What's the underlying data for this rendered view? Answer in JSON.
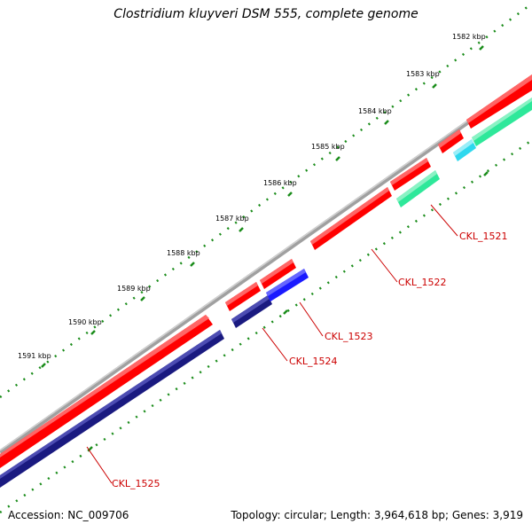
{
  "title": "Clostridium kluyveri DSM 555, complete genome",
  "accession_text": "Accession: NC_009706",
  "summary_text": "Topology: circular; Length: 3,964,618 bp; Genes: 3,919",
  "colors": {
    "backbone": "#8c8c8c",
    "forward_cds": "#ff0000",
    "reverse_cds": "#1a1a80",
    "blue_cds": "#1a1aff",
    "green_cds": "#2ee89a",
    "cyan_cds": "#2ed8ee",
    "tick": "#1a8c1a",
    "label_line": "#cc0000"
  },
  "scale": {
    "tick_labels": [
      "1582 kbp",
      "1583 kbp",
      "1584 kbp",
      "1585 kbp",
      "1586 kbp",
      "1587 kbp",
      "1588 kbp",
      "1589 kbp",
      "1590 kbp",
      "1591 kbp"
    ]
  },
  "gene_labels": [
    "CKL_1521",
    "CKL_1522",
    "CKL_1523",
    "CKL_1524",
    "CKL_1525"
  ]
}
